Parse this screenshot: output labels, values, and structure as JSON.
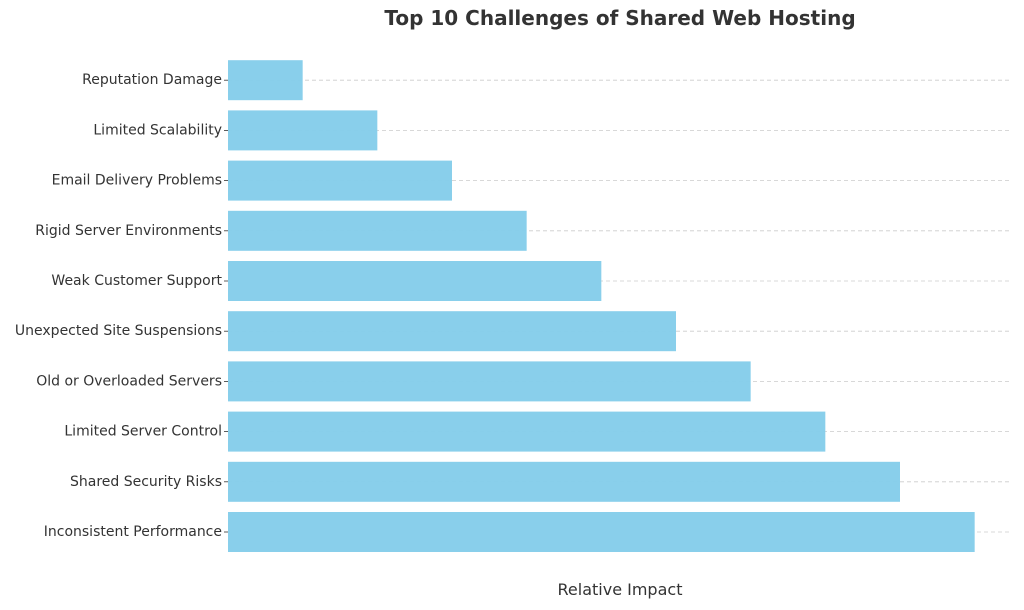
{
  "chart_data": {
    "type": "bar",
    "orientation": "horizontal",
    "title": "Top 10 Challenges of Shared Web Hosting",
    "xlabel": "Relative Impact",
    "ylabel": "",
    "categories": [
      "Inconsistent Performance",
      "Shared Security Risks",
      "Limited Server Control",
      "Old or Overloaded Servers",
      "Unexpected Site Suspensions",
      "Weak Customer Support",
      "Rigid Server Environments",
      "Email Delivery Problems",
      "Limited Scalability",
      "Reputation Damage"
    ],
    "values": [
      10,
      9,
      8,
      7,
      6,
      5,
      4,
      3,
      2,
      1
    ],
    "xlim": [
      0,
      10.5
    ],
    "grid": "horizontal dashed",
    "bar_color": "#87CEEB",
    "legend": "none"
  }
}
